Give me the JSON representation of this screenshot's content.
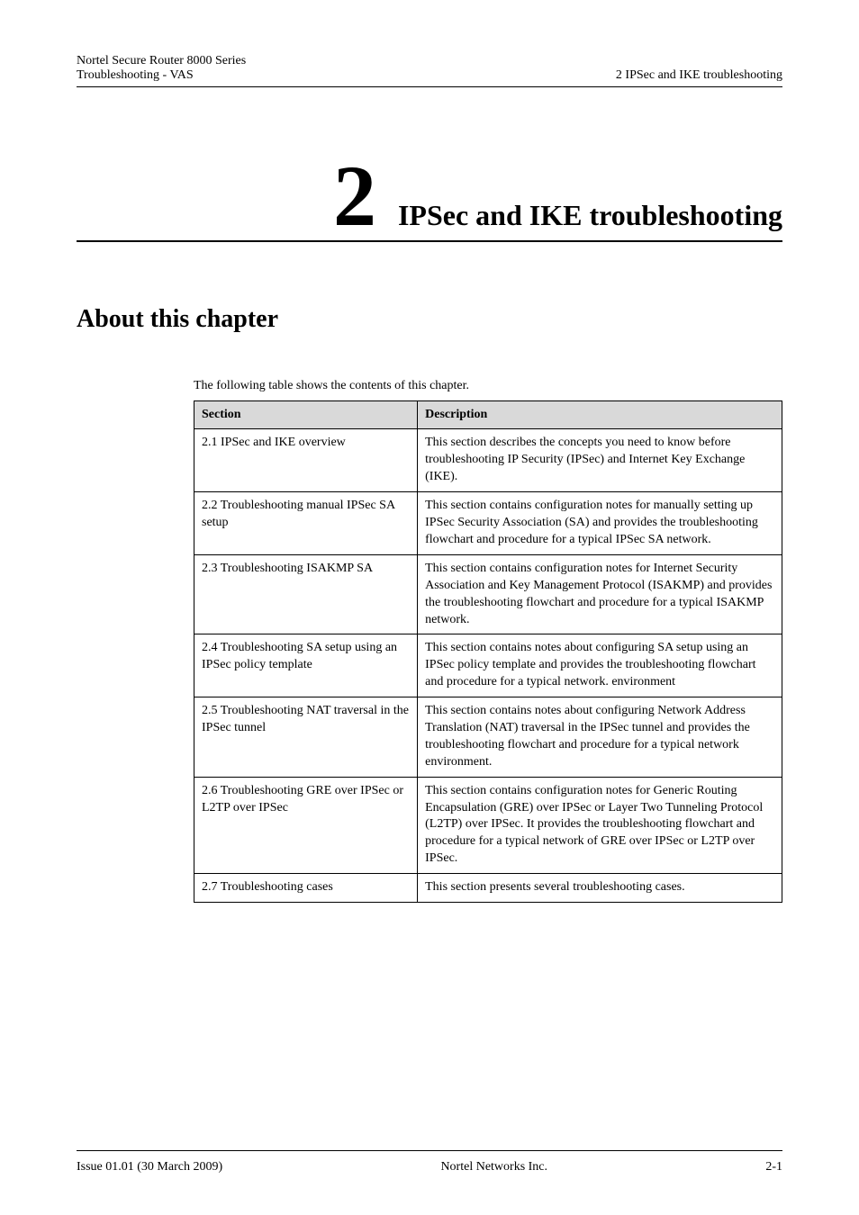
{
  "header": {
    "line1_left": "Nortel Secure Router 8000 Series",
    "line2_left": "Troubleshooting - VAS",
    "line2_right": "2 IPSec and IKE troubleshooting"
  },
  "chapter": {
    "number": "2",
    "title": "IPSec and IKE troubleshooting"
  },
  "section_heading": "About this chapter",
  "intro_text": "The following table shows the contents of this chapter.",
  "table": {
    "header_col1": "Section",
    "header_col2": "Description",
    "rows": [
      {
        "section": "2.1 IPSec and IKE overview",
        "description": "This section describes the concepts you need to know before troubleshooting IP Security (IPSec) and Internet Key Exchange (IKE)."
      },
      {
        "section": "2.2 Troubleshooting manual IPSec SA setup",
        "description": "This section contains configuration notes for manually setting up IPSec Security Association (SA) and provides the troubleshooting flowchart and procedure for a typical IPSec SA network."
      },
      {
        "section": "2.3 Troubleshooting ISAKMP SA",
        "description": "This section contains configuration notes for Internet Security Association and Key Management Protocol (ISAKMP) and provides the troubleshooting flowchart and procedure for a typical ISAKMP network."
      },
      {
        "section": "2.4 Troubleshooting SA setup using an IPSec policy template",
        "description": "This section contains notes about configuring SA setup using an IPSec policy template and provides the troubleshooting flowchart and procedure for a typical network. environment"
      },
      {
        "section": "2.5 Troubleshooting NAT traversal in the IPSec tunnel",
        "description": "This section contains notes about configuring Network Address Translation (NAT) traversal in the IPSec tunnel and provides the troubleshooting flowchart and procedure for a typical network environment."
      },
      {
        "section": "2.6 Troubleshooting GRE over IPSec or L2TP over IPSec",
        "description": "This section contains configuration notes for Generic Routing Encapsulation (GRE) over IPSec or Layer Two Tunneling Protocol (L2TP) over IPSec. It provides the troubleshooting flowchart and procedure for a typical network of GRE over IPSec or L2TP over IPSec."
      },
      {
        "section": "2.7 Troubleshooting cases",
        "description": "This section presents several troubleshooting cases."
      }
    ]
  },
  "footer": {
    "left": "Issue 01.01 (30 March 2009)",
    "center": "Nortel Networks Inc.",
    "right": "2-1"
  }
}
